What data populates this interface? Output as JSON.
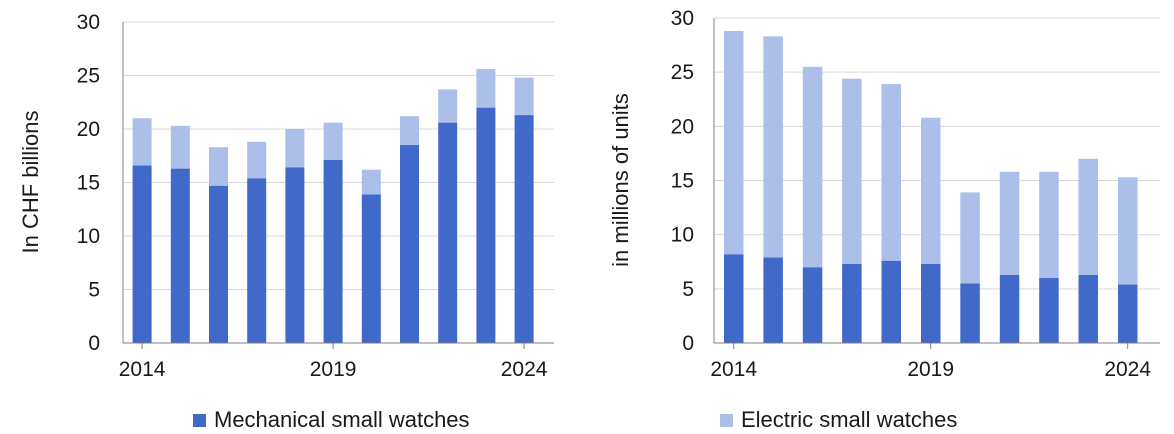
{
  "colors": {
    "mechanical": "#4169c9",
    "electric": "#abbfe8",
    "grid": "#d9d9d9",
    "axis": "#7f7f7f"
  },
  "legend": {
    "mechanical_label": "Mechanical small watches",
    "electric_label": "Electric small watches"
  },
  "chart_data": [
    {
      "type": "bar",
      "stacked": true,
      "title": "",
      "xlabel": "",
      "ylabel": "In CHF billions",
      "x": [
        2014,
        2015,
        2016,
        2017,
        2018,
        2019,
        2020,
        2021,
        2022,
        2023,
        2024
      ],
      "x_tick_labels": [
        "2014",
        "2019",
        "2024"
      ],
      "ylim": [
        0,
        30
      ],
      "y_ticks": [
        0,
        5,
        10,
        15,
        20,
        25,
        30
      ],
      "grid": true,
      "series": [
        {
          "name": "Mechanical small watches",
          "values": [
            16.6,
            16.3,
            14.7,
            15.4,
            16.4,
            17.1,
            13.9,
            18.5,
            20.6,
            22.0,
            21.3
          ]
        },
        {
          "name": "Electric small watches",
          "values": [
            4.4,
            4.0,
            3.6,
            3.4,
            3.6,
            3.5,
            2.3,
            2.7,
            3.1,
            3.6,
            3.5
          ]
        }
      ]
    },
    {
      "type": "bar",
      "stacked": true,
      "title": "",
      "xlabel": "",
      "ylabel": "in millions of units",
      "x": [
        2014,
        2015,
        2016,
        2017,
        2018,
        2019,
        2020,
        2021,
        2022,
        2023,
        2024
      ],
      "x_tick_labels": [
        "2014",
        "2019",
        "2024"
      ],
      "ylim": [
        0,
        30
      ],
      "y_ticks": [
        0,
        5,
        10,
        15,
        20,
        25,
        30
      ],
      "grid": true,
      "series": [
        {
          "name": "Mechanical small watches",
          "values": [
            8.2,
            7.9,
            7.0,
            7.3,
            7.6,
            7.3,
            5.5,
            6.3,
            6.0,
            6.3,
            5.4
          ]
        },
        {
          "name": "Electric small watches",
          "values": [
            20.6,
            20.4,
            18.5,
            17.1,
            16.3,
            13.5,
            8.4,
            9.5,
            9.8,
            10.7,
            9.9
          ]
        }
      ]
    }
  ]
}
